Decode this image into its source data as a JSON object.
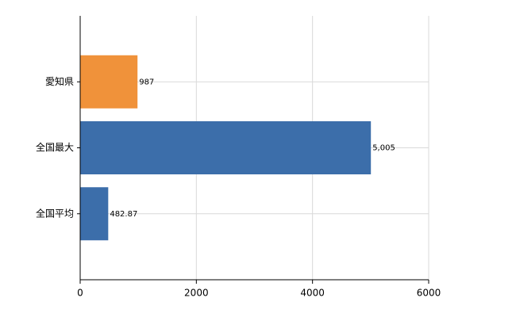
{
  "chart_data": {
    "type": "hbar",
    "categories": [
      "愛知県",
      "全国最大",
      "全国平均"
    ],
    "values": [
      987,
      5005,
      482.87
    ],
    "value_labels": [
      "987",
      "5,005",
      "482.87"
    ],
    "colors": [
      "#f0923a",
      "#3c6eaa",
      "#3c6eaa"
    ],
    "xlim": [
      0,
      6000
    ],
    "xticks": [
      0,
      2000,
      4000,
      6000
    ],
    "grid": true
  }
}
